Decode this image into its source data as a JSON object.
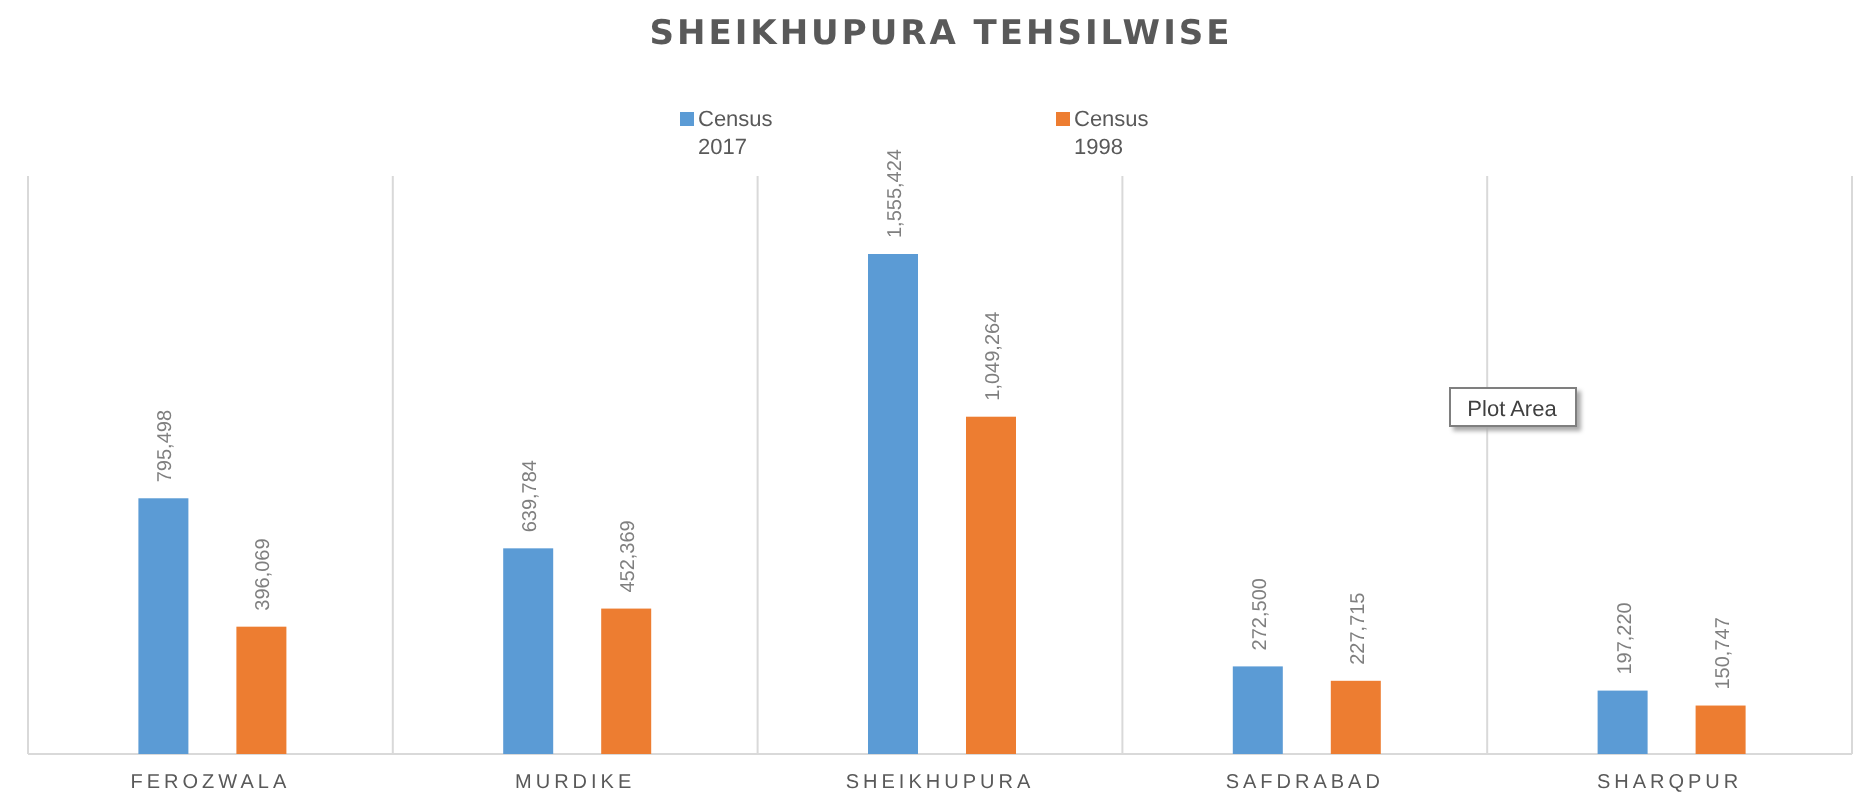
{
  "chart_data": {
    "type": "bar",
    "title": "SHEIKHUPURA TEHSILWISE",
    "categories": [
      "FEROZWALA",
      "MURDIKE",
      "SHEIKHUPURA",
      "SAFDRABAD",
      "SHARQPUR"
    ],
    "series": [
      {
        "name": "Census 2017",
        "color": "#5b9bd5",
        "values": [
          795498,
          639784,
          1555424,
          272500,
          197220
        ],
        "value_labels": [
          "795,498",
          "639,784",
          "1,555,424",
          "272,500",
          "197,220"
        ]
      },
      {
        "name": "Census 1998",
        "color": "#ed7d31",
        "values": [
          396069,
          452369,
          1049264,
          227715,
          150747
        ],
        "value_labels": [
          "396,069",
          "452,369",
          "1,049,264",
          "227,715",
          "150,747"
        ]
      }
    ],
    "grid": "x",
    "legend": "top",
    "annotations": [
      "Plot Area"
    ]
  }
}
